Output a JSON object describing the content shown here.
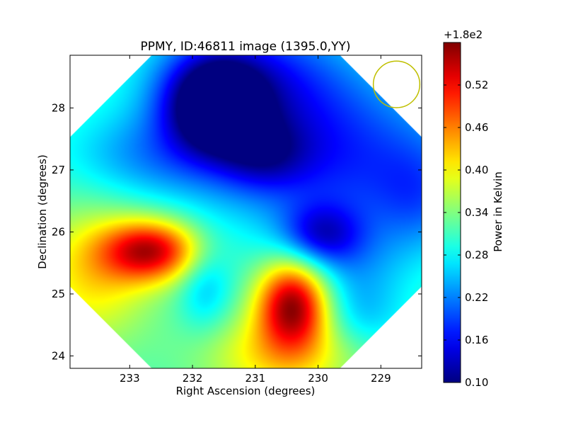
{
  "chart_data": {
    "type": "heatmap",
    "title": "PPMY, ID:46811 image (1395.0,YY)",
    "xlabel": "Right Ascension (degrees)",
    "ylabel": "Declination (degrees)",
    "xlim": [
      233.95,
      228.35
    ],
    "ylim": [
      23.8,
      28.85
    ],
    "x_ticks": [
      233,
      232,
      231,
      230,
      229
    ],
    "x_tick_labels": [
      "233",
      "232",
      "231",
      "230",
      "229"
    ],
    "y_ticks": [
      24,
      25,
      26,
      27,
      28
    ],
    "y_tick_labels": [
      "24",
      "25",
      "26",
      "27",
      "28"
    ],
    "colorbar": {
      "label": "Power in Kelvin",
      "offset_label": "+1.8e2",
      "range": [
        0.1,
        0.58
      ],
      "ticks": [
        0.1,
        0.16,
        0.22,
        0.28,
        0.34,
        0.4,
        0.46,
        0.52
      ],
      "tick_labels": [
        "0.10",
        "0.16",
        "0.22",
        "0.28",
        "0.34",
        "0.40",
        "0.46",
        "0.52"
      ],
      "colormap": "jet"
    },
    "field_of_view": "octagon",
    "beam_circle": {
      "ra": 228.75,
      "dec": 28.38,
      "radius_deg": 0.37,
      "color": "#bfbf00"
    },
    "field_background": 0.31,
    "features": [
      {
        "ra": 231.65,
        "dec": 28.05,
        "sx": 0.55,
        "sy": 0.55,
        "amp": -0.22
      },
      {
        "ra": 231.0,
        "dec": 28.6,
        "sx": 1.1,
        "sy": 0.7,
        "amp": -0.1
      },
      {
        "ra": 230.85,
        "dec": 27.25,
        "sx": 0.5,
        "sy": 0.4,
        "amp": -0.08
      },
      {
        "ra": 230.2,
        "dec": 27.7,
        "sx": 1.6,
        "sy": 0.8,
        "amp": -0.08
      },
      {
        "ra": 229.5,
        "dec": 26.8,
        "sx": 1.6,
        "sy": 0.8,
        "amp": -0.08
      },
      {
        "ra": 228.4,
        "dec": 26.5,
        "sx": 0.5,
        "sy": 0.6,
        "amp": -0.05
      },
      {
        "ra": 229.95,
        "dec": 25.95,
        "sx": 0.45,
        "sy": 0.35,
        "amp": -0.12
      },
      {
        "ra": 232.8,
        "dec": 27.2,
        "sx": 0.9,
        "sy": 0.5,
        "amp": -0.06
      },
      {
        "ra": 229.4,
        "dec": 25.4,
        "sx": 0.6,
        "sy": 0.5,
        "amp": -0.05
      },
      {
        "ra": 232.65,
        "dec": 25.7,
        "sx": 0.55,
        "sy": 0.35,
        "amp": 0.22
      },
      {
        "ra": 233.6,
        "dec": 25.3,
        "sx": 0.7,
        "sy": 0.8,
        "amp": 0.1
      },
      {
        "ra": 230.4,
        "dec": 24.85,
        "sx": 0.4,
        "sy": 0.5,
        "amp": 0.25
      },
      {
        "ra": 230.6,
        "dec": 24.0,
        "sx": 0.9,
        "sy": 0.5,
        "amp": 0.1
      },
      {
        "ra": 231.8,
        "dec": 25.1,
        "sx": 0.3,
        "sy": 0.5,
        "amp": -0.06
      },
      {
        "ra": 229.3,
        "dec": 24.6,
        "sx": 0.5,
        "sy": 0.4,
        "amp": -0.05
      }
    ]
  }
}
